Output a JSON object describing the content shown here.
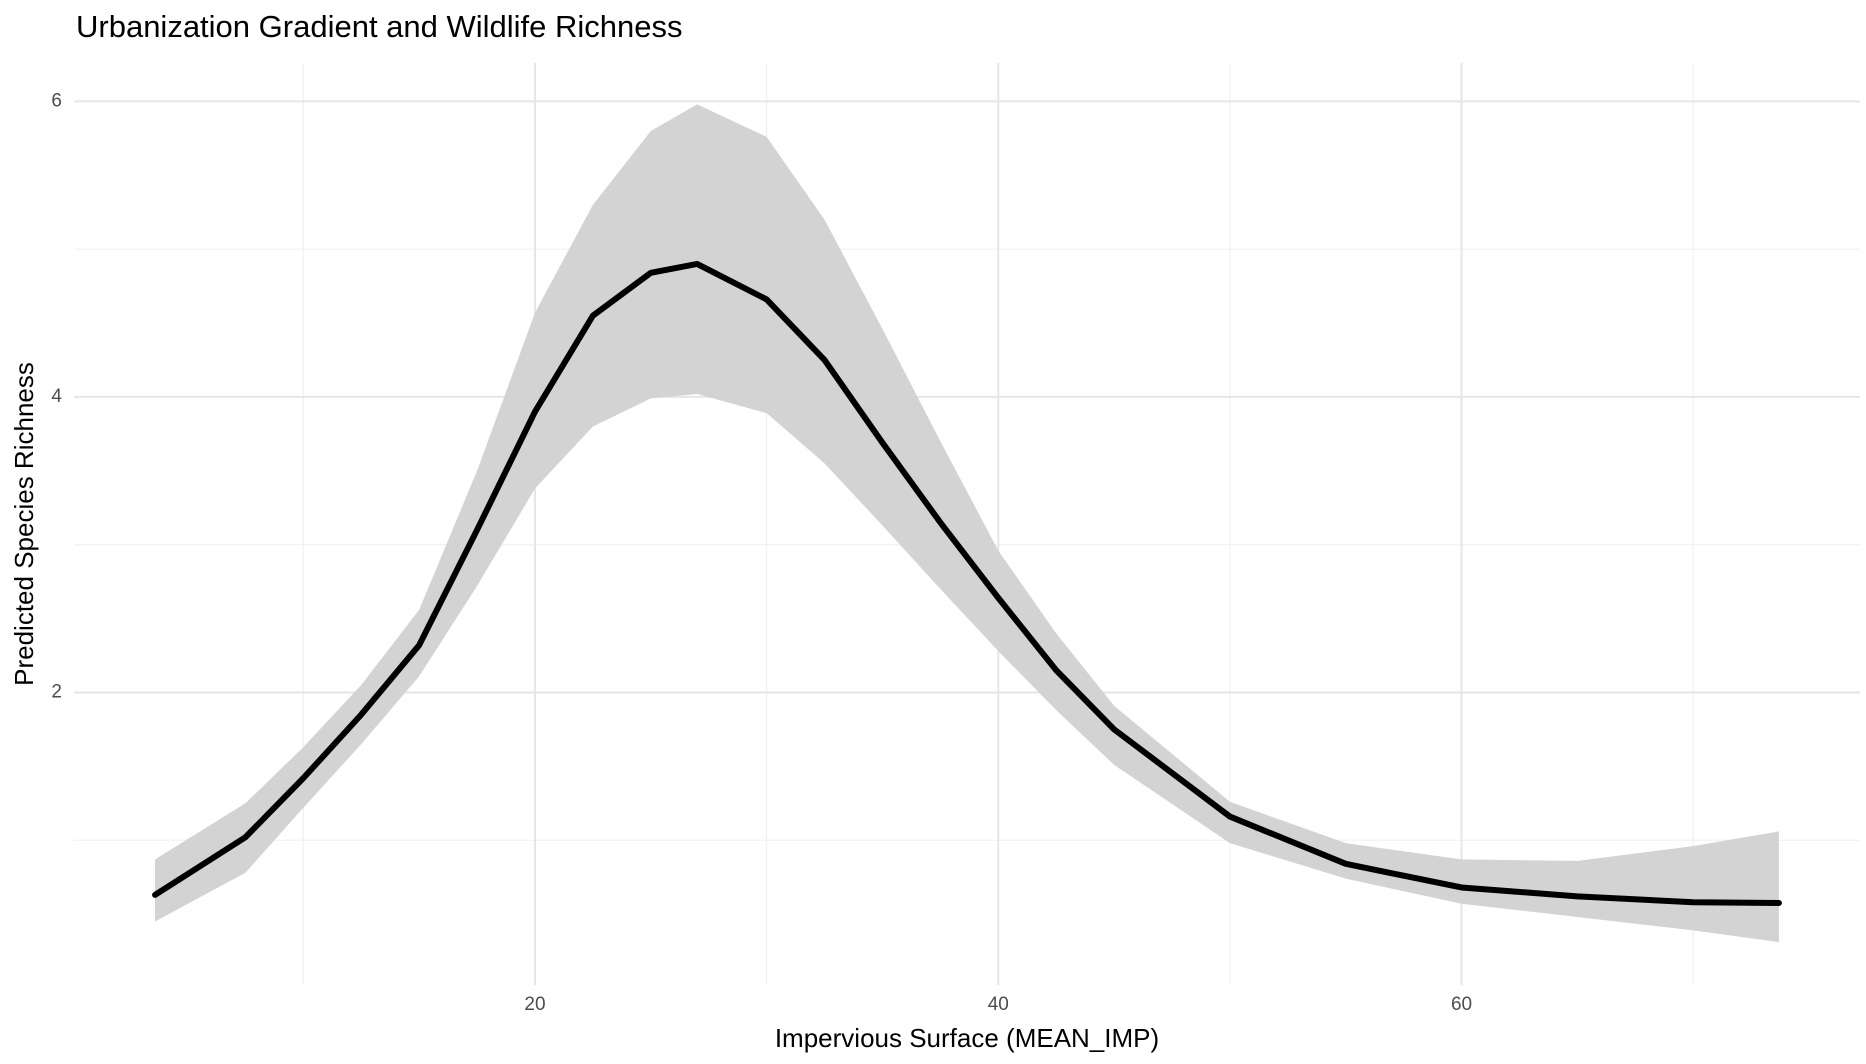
{
  "chart_data": {
    "type": "line",
    "title": "Urbanization Gradient and Wildlife Richness",
    "x_label": "Impervious Surface (MEAN_IMP)",
    "y_label": "Predicted Species Richness",
    "x": [
      3.6,
      7.5,
      10,
      12.5,
      15,
      17.5,
      20,
      22.5,
      25,
      27,
      30,
      32.5,
      35,
      37.5,
      40,
      42.5,
      45,
      50,
      55,
      60,
      65,
      70,
      73.7
    ],
    "series": [
      {
        "name": "Predicted",
        "color": "#000000",
        "band_color": "#d3d3d3",
        "values": [
          0.63,
          1.02,
          1.42,
          1.85,
          2.32,
          3.1,
          3.9,
          4.55,
          4.84,
          4.9,
          4.66,
          4.25,
          3.69,
          3.15,
          2.64,
          2.15,
          1.75,
          1.16,
          0.84,
          0.68,
          0.62,
          0.58,
          0.575
        ],
        "lower": [
          0.45,
          0.78,
          1.22,
          1.65,
          2.11,
          2.72,
          3.38,
          3.8,
          3.99,
          4.02,
          3.89,
          3.55,
          3.13,
          2.7,
          2.28,
          1.88,
          1.51,
          0.98,
          0.74,
          0.57,
          0.48,
          0.39,
          0.31
        ],
        "upper": [
          0.87,
          1.25,
          1.63,
          2.05,
          2.56,
          3.5,
          4.57,
          5.3,
          5.8,
          5.98,
          5.76,
          5.2,
          4.46,
          3.7,
          2.96,
          2.4,
          1.91,
          1.26,
          0.98,
          0.87,
          0.86,
          0.96,
          1.06
        ]
      }
    ],
    "xlim": [
      0.1,
      77.2
    ],
    "xticks": [
      20,
      40,
      60
    ],
    "x_minor_ticks": [
      10,
      30,
      50,
      70
    ],
    "ylim": [
      0.02,
      6.26
    ],
    "yticks": [
      2,
      4,
      6
    ],
    "y_minor_ticks": [
      1,
      3,
      5
    ],
    "grid": true
  }
}
